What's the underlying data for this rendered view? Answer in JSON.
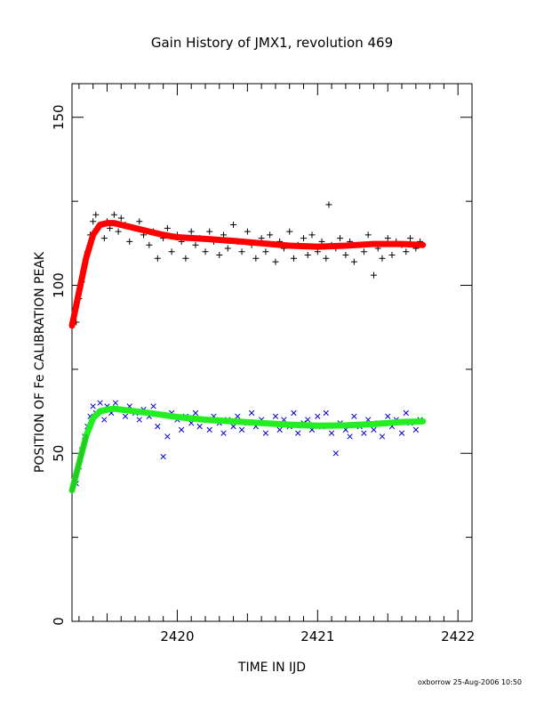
{
  "chart_data": {
    "type": "scatter",
    "title": "Gain History of JMX1, revolution 469",
    "xlabel": "TIME IN IJD",
    "ylabel": "POSITION OF Fe CALIBRATION PEAK",
    "xlim": [
      2419.25,
      2422.1
    ],
    "ylim": [
      0,
      160
    ],
    "x_ticks": [
      2420,
      2421,
      2422
    ],
    "y_ticks": [
      0,
      50,
      100,
      150
    ],
    "credit": "oxborrow 25-Aug-2006 10:50",
    "colors": {
      "upper_points": "#000000",
      "upper_fit": "#ff0000",
      "lower_points": "#0000cc",
      "lower_fit": "#22ee22",
      "lower_fit_start": "#22cc22"
    },
    "series": [
      {
        "marker": "plus",
        "x": [
          2419.28,
          2419.3,
          2419.32,
          2419.34,
          2419.36,
          2419.38,
          2419.4,
          2419.42,
          2419.45,
          2419.48,
          2419.5,
          2419.52,
          2419.55,
          2419.58,
          2419.6,
          2419.63,
          2419.66,
          2419.7,
          2419.73,
          2419.76,
          2419.8,
          2419.83,
          2419.86,
          2419.9,
          2419.93,
          2419.96,
          2420.0,
          2420.03,
          2420.06,
          2420.1,
          2420.13,
          2420.16,
          2420.2,
          2420.23,
          2420.26,
          2420.3,
          2420.33,
          2420.36,
          2420.4,
          2420.43,
          2420.46,
          2420.5,
          2420.53,
          2420.56,
          2420.6,
          2420.63,
          2420.66,
          2420.7,
          2420.73,
          2420.76,
          2420.8,
          2420.83,
          2420.86,
          2420.9,
          2420.93,
          2420.96,
          2421.0,
          2421.03,
          2421.06,
          2421.08,
          2421.1,
          2421.13,
          2421.16,
          2421.2,
          2421.23,
          2421.26,
          2421.3,
          2421.33,
          2421.36,
          2421.4,
          2421.43,
          2421.46,
          2421.5,
          2421.53,
          2421.56,
          2421.6,
          2421.63,
          2421.66,
          2421.7,
          2421.73
        ],
        "y": [
          89,
          96,
          101,
          106,
          110,
          115,
          119,
          121,
          118,
          114,
          119,
          117,
          121,
          116,
          120,
          118,
          113,
          117,
          119,
          115,
          112,
          116,
          108,
          114,
          117,
          110,
          115,
          113,
          108,
          116,
          112,
          114,
          110,
          116,
          113,
          109,
          115,
          111,
          118,
          113,
          110,
          116,
          112,
          108,
          114,
          110,
          115,
          107,
          113,
          111,
          116,
          108,
          112,
          114,
          109,
          115,
          110,
          113,
          108,
          124,
          112,
          111,
          114,
          109,
          113,
          107,
          112,
          110,
          115,
          103,
          111,
          108,
          114,
          109,
          113,
          112,
          110,
          114,
          111,
          113
        ]
      },
      {
        "marker": "line",
        "x": [
          2419.25,
          2419.3,
          2419.35,
          2419.4,
          2419.45,
          2419.5,
          2419.55,
          2419.6,
          2419.7,
          2419.8,
          2419.9,
          2420.0,
          2420.2,
          2420.4,
          2420.6,
          2420.8,
          2421.0,
          2421.2,
          2421.4,
          2421.6,
          2421.75
        ],
        "y": [
          88,
          98,
          108,
          115,
          118,
          118.5,
          118.5,
          118,
          117,
          116,
          115,
          114.3,
          113.8,
          113.2,
          112.5,
          111.8,
          111.5,
          111.8,
          112.3,
          112.3,
          112
        ]
      },
      {
        "marker": "cross",
        "x": [
          2419.28,
          2419.3,
          2419.32,
          2419.34,
          2419.36,
          2419.38,
          2419.4,
          2419.42,
          2419.45,
          2419.48,
          2419.5,
          2419.53,
          2419.56,
          2419.6,
          2419.63,
          2419.66,
          2419.7,
          2419.73,
          2419.76,
          2419.8,
          2419.83,
          2419.86,
          2419.9,
          2419.93,
          2419.96,
          2420.0,
          2420.03,
          2420.06,
          2420.1,
          2420.13,
          2420.16,
          2420.2,
          2420.23,
          2420.26,
          2420.3,
          2420.33,
          2420.36,
          2420.4,
          2420.43,
          2420.46,
          2420.5,
          2420.53,
          2420.56,
          2420.6,
          2420.63,
          2420.66,
          2420.7,
          2420.73,
          2420.76,
          2420.8,
          2420.83,
          2420.86,
          2420.9,
          2420.93,
          2420.96,
          2421.0,
          2421.03,
          2421.06,
          2421.1,
          2421.13,
          2421.16,
          2421.2,
          2421.23,
          2421.26,
          2421.3,
          2421.33,
          2421.36,
          2421.4,
          2421.43,
          2421.46,
          2421.5,
          2421.53,
          2421.56,
          2421.6,
          2421.63,
          2421.66,
          2421.7,
          2421.73
        ],
        "y": [
          41,
          46,
          51,
          55,
          58,
          61,
          64,
          62,
          65,
          60,
          64,
          62,
          65,
          63,
          61,
          64,
          62,
          60,
          63,
          61,
          64,
          58,
          49,
          55,
          62,
          60,
          57,
          61,
          59,
          62,
          58,
          60,
          57,
          61,
          59,
          56,
          60,
          58,
          61,
          57,
          59,
          62,
          58,
          60,
          56,
          59,
          61,
          57,
          60,
          58,
          62,
          56,
          59,
          60,
          57,
          61,
          58,
          62,
          56,
          50,
          59,
          57,
          55,
          61,
          58,
          56,
          60,
          57,
          59,
          55,
          61,
          58,
          60,
          56,
          62,
          59,
          57,
          60
        ]
      },
      {
        "marker": "line",
        "x": [
          2419.25,
          2419.3,
          2419.35,
          2419.4,
          2419.45,
          2419.5,
          2419.55,
          2419.6,
          2419.7,
          2419.8,
          2419.9,
          2420.0,
          2420.2,
          2420.4,
          2420.6,
          2420.8,
          2421.0,
          2421.2,
          2421.4,
          2421.6,
          2421.75
        ],
        "y": [
          39,
          47,
          55,
          60.5,
          62.5,
          63,
          63.3,
          63,
          62.5,
          62,
          61.4,
          60.8,
          60,
          59.5,
          59,
          58.5,
          58.2,
          58.3,
          58.7,
          59.3,
          59.5
        ]
      }
    ]
  }
}
